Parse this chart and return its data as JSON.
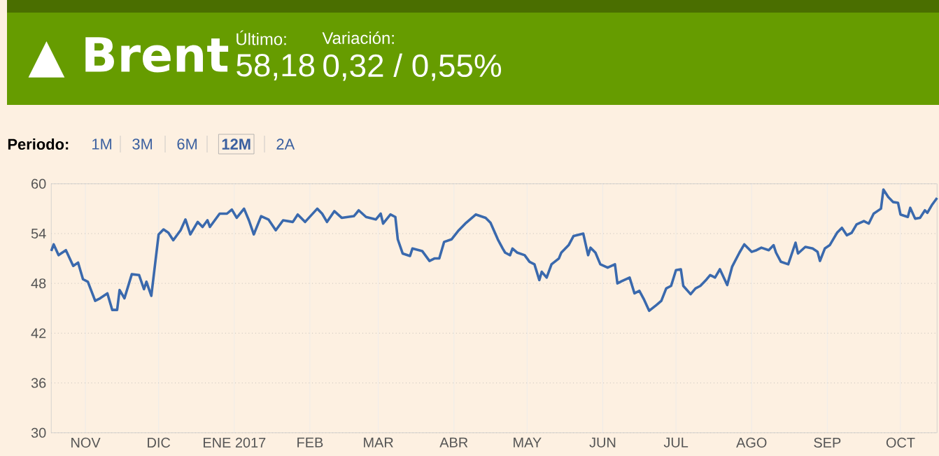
{
  "chart_data": {
    "type": "line",
    "title": "▲ Brent",
    "annotations": [
      "Último:",
      "58,18",
      "Variación:",
      "0,32 / 0,55%",
      "Periodo:",
      "1M",
      "3M",
      "6M",
      "12M",
      "2A"
    ],
    "x": [
      "2016-10-18",
      "2016-10-19",
      "2016-10-21",
      "2016-10-24",
      "2016-10-27",
      "2016-10-29",
      "2016-10-31",
      "2016-11-02",
      "2016-11-05",
      "2016-11-07",
      "2016-11-10",
      "2016-11-12",
      "2016-11-14",
      "2016-11-15",
      "2016-11-17",
      "2016-11-20",
      "2016-11-23",
      "2016-11-25",
      "2016-11-26",
      "2016-11-28",
      "2016-12-01",
      "2016-12-03",
      "2016-12-05",
      "2016-12-07",
      "2016-12-10",
      "2016-12-12",
      "2016-12-14",
      "2016-12-17",
      "2016-12-19",
      "2016-12-21",
      "2016-12-22",
      "2016-12-26",
      "2016-12-29",
      "2016-12-31",
      "2017-01-02",
      "2017-01-05",
      "2017-01-07",
      "2017-01-09",
      "2017-01-12",
      "2017-01-15",
      "2017-01-18",
      "2017-01-21",
      "2017-01-25",
      "2017-01-27",
      "2017-01-30",
      "2017-02-04",
      "2017-02-06",
      "2017-02-08",
      "2017-02-11",
      "2017-02-14",
      "2017-02-19",
      "2017-02-21",
      "2017-02-24",
      "2017-02-28",
      "2017-03-02",
      "2017-03-03",
      "2017-03-06",
      "2017-03-08",
      "2017-03-09",
      "2017-03-11",
      "2017-03-14",
      "2017-03-15",
      "2017-03-19",
      "2017-03-22",
      "2017-03-24",
      "2017-03-26",
      "2017-03-28",
      "2017-03-31",
      "2017-04-03",
      "2017-04-06",
      "2017-04-10",
      "2017-04-14",
      "2017-04-16",
      "2017-04-19",
      "2017-04-21",
      "2017-04-22",
      "2017-04-24",
      "2017-04-25",
      "2017-04-27",
      "2017-04-30",
      "2017-05-02",
      "2017-05-04",
      "2017-05-06",
      "2017-05-07",
      "2017-05-09",
      "2017-05-11",
      "2017-05-14",
      "2017-05-15",
      "2017-05-18",
      "2017-05-20",
      "2017-05-24",
      "2017-05-26",
      "2017-05-27",
      "2017-05-29",
      "2017-05-31",
      "2017-06-03",
      "2017-06-06",
      "2017-06-07",
      "2017-06-09",
      "2017-06-12",
      "2017-06-14",
      "2017-06-16",
      "2017-06-18",
      "2017-06-20",
      "2017-06-23",
      "2017-06-25",
      "2017-06-27",
      "2017-06-29",
      "2017-07-01",
      "2017-07-03",
      "2017-07-04",
      "2017-07-07",
      "2017-07-09",
      "2017-07-11",
      "2017-07-13",
      "2017-07-15",
      "2017-07-17",
      "2017-07-19",
      "2017-07-22",
      "2017-07-24",
      "2017-07-27",
      "2017-07-29",
      "2017-08-01",
      "2017-08-03",
      "2017-08-05",
      "2017-08-08",
      "2017-08-10",
      "2017-08-11",
      "2017-08-13",
      "2017-08-16",
      "2017-08-19",
      "2017-08-20",
      "2017-08-23",
      "2017-08-26",
      "2017-08-28",
      "2017-08-29",
      "2017-08-31",
      "2017-09-02",
      "2017-09-05",
      "2017-09-07",
      "2017-09-09",
      "2017-09-11",
      "2017-09-13",
      "2017-09-16",
      "2017-09-18",
      "2017-09-20",
      "2017-09-23",
      "2017-09-24",
      "2017-09-26",
      "2017-09-28",
      "2017-09-30",
      "2017-10-01",
      "2017-10-04",
      "2017-10-05",
      "2017-10-07",
      "2017-10-09",
      "2017-10-11",
      "2017-10-12",
      "2017-10-14",
      "2017-10-16"
    ],
    "series": [
      {
        "color": "#3a69ad",
        "values": [
          51.9,
          52.7,
          51.4,
          52.0,
          50.1,
          50.5,
          48.5,
          48.2,
          45.9,
          46.2,
          46.8,
          44.8,
          44.8,
          47.2,
          46.2,
          49.1,
          49.0,
          47.3,
          48.2,
          46.5,
          53.9,
          54.5,
          54.1,
          53.2,
          54.4,
          55.7,
          53.9,
          55.4,
          54.8,
          55.6,
          54.8,
          56.4,
          56.4,
          56.9,
          55.9,
          57.0,
          55.6,
          53.9,
          56.1,
          55.7,
          54.4,
          55.6,
          55.4,
          56.3,
          55.4,
          57.0,
          56.4,
          55.4,
          56.7,
          55.9,
          56.1,
          56.8,
          56.0,
          55.7,
          56.4,
          55.2,
          56.3,
          56.0,
          53.3,
          51.6,
          51.3,
          52.2,
          51.9,
          50.7,
          51.0,
          51.0,
          53.0,
          53.3,
          54.4,
          55.3,
          56.3,
          55.9,
          55.3,
          53.3,
          52.2,
          51.7,
          51.4,
          52.2,
          51.7,
          51.4,
          50.6,
          50.3,
          48.4,
          49.4,
          48.7,
          50.3,
          51.0,
          51.7,
          52.6,
          53.7,
          54.0,
          51.4,
          52.3,
          51.7,
          50.3,
          49.9,
          50.3,
          48.0,
          48.3,
          48.7,
          46.8,
          47.1,
          46.0,
          44.7,
          45.4,
          45.9,
          47.4,
          47.7,
          49.6,
          49.7,
          47.7,
          46.7,
          47.4,
          47.7,
          48.3,
          49.0,
          48.7,
          49.7,
          47.8,
          50.0,
          51.7,
          52.7,
          51.8,
          52.0,
          52.3,
          52.0,
          52.6,
          51.7,
          50.6,
          50.3,
          52.9,
          51.6,
          52.4,
          52.2,
          51.8,
          50.7,
          52.2,
          52.6,
          54.1,
          54.7,
          53.8,
          54.1,
          55.1,
          55.5,
          55.2,
          56.4,
          57.0,
          59.3,
          58.4,
          57.8,
          57.7,
          56.3,
          56.0,
          57.1,
          55.8,
          55.9,
          56.8,
          56.5,
          57.5,
          58.3
        ]
      }
    ],
    "xlim": [
      "2016-10-18",
      "2017-10-16"
    ],
    "xticks": [
      {
        "value": "2016-11-01",
        "label": "NOV"
      },
      {
        "value": "2016-12-01",
        "label": "DIC"
      },
      {
        "value": "2017-01-01",
        "label": "ENE 2017"
      },
      {
        "value": "2017-02-01",
        "label": "FEB"
      },
      {
        "value": "2017-03-01",
        "label": "MAR"
      },
      {
        "value": "2017-04-01",
        "label": "ABR"
      },
      {
        "value": "2017-05-01",
        "label": "MAY"
      },
      {
        "value": "2017-06-01",
        "label": "JUN"
      },
      {
        "value": "2017-07-01",
        "label": "JUL"
      },
      {
        "value": "2017-08-01",
        "label": "AGO"
      },
      {
        "value": "2017-09-01",
        "label": "SEP"
      },
      {
        "value": "2017-10-01",
        "label": "OCT"
      }
    ],
    "ylim": [
      30,
      60
    ],
    "yticks": [
      30,
      36,
      42,
      48,
      54,
      60
    ],
    "grid": true
  }
}
